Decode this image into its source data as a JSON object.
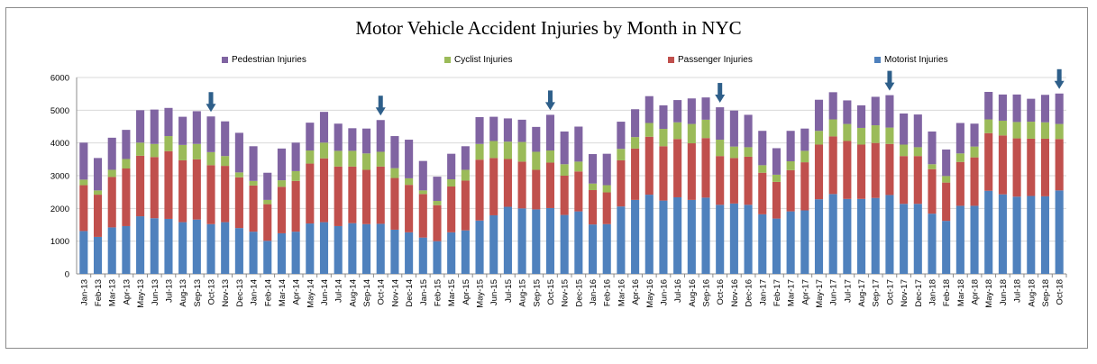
{
  "chart_data": {
    "type": "bar",
    "stacked": true,
    "title": "Motor Vehicle Accident Injuries by Month in NYC",
    "xlabel": "",
    "ylabel": "",
    "ylim": [
      0,
      6000
    ],
    "yticks": [
      "0",
      "1000",
      "2000",
      "3000",
      "4000",
      "5000",
      "6000"
    ],
    "grid": true,
    "legend_position": "top",
    "categories": [
      "Jan-13",
      "Feb-13",
      "Mar-13",
      "Apr-13",
      "May-13",
      "Jun-13",
      "Jul-13",
      "Aug-13",
      "Sep-13",
      "Oct-13",
      "Nov-13",
      "Dec-13",
      "Jan-14",
      "Feb-14",
      "Mar-14",
      "Apr-14",
      "May-14",
      "Jun-14",
      "Jul-14",
      "Aug-14",
      "Sep-14",
      "Oct-14",
      "Nov-14",
      "Dec-14",
      "Jan-15",
      "Feb-15",
      "Mar-15",
      "Apr-15",
      "May-15",
      "Jun-15",
      "Jul-15",
      "Aug-15",
      "Sep-15",
      "Oct-15",
      "Nov-15",
      "Dec-15",
      "Jan-16",
      "Feb-16",
      "Mar-16",
      "Apr-16",
      "May-16",
      "Jun-16",
      "Jul-16",
      "Aug-16",
      "Sep-16",
      "Oct-16",
      "Nov-16",
      "Dec-16",
      "Jan-17",
      "Feb-17",
      "Mar-17",
      "Apr-17",
      "May-17",
      "Jun-17",
      "Jul-17",
      "Aug-17",
      "Sep-17",
      "Oct-17",
      "Nov-17",
      "Dec-17",
      "Jan-18",
      "Feb-18",
      "Mar-18",
      "Apr-18",
      "May-18",
      "Jun-18",
      "Jul-18",
      "Aug-18",
      "Sep-18",
      "Oct-18"
    ],
    "series": [
      {
        "name": "Motorist Injuries",
        "color": "#4f81bd",
        "values": [
          1310,
          1130,
          1420,
          1460,
          1760,
          1700,
          1680,
          1580,
          1660,
          1520,
          1580,
          1400,
          1290,
          1010,
          1240,
          1290,
          1540,
          1580,
          1460,
          1550,
          1520,
          1530,
          1350,
          1270,
          1110,
          1000,
          1270,
          1330,
          1630,
          1790,
          2050,
          2000,
          1970,
          2010,
          1800,
          1910,
          1510,
          1520,
          2060,
          2260,
          2420,
          2240,
          2340,
          2260,
          2330,
          2110,
          2150,
          2110,
          1820,
          1690,
          1910,
          1940,
          2280,
          2440,
          2290,
          2290,
          2320,
          2410,
          2140,
          2140,
          1840,
          1620,
          2080,
          2080,
          2540,
          2430,
          2360,
          2380,
          2370,
          2550
        ]
      },
      {
        "name": "Passenger Injuries",
        "color": "#c0504d",
        "values": [
          1400,
          1290,
          1540,
          1760,
          1850,
          1870,
          2070,
          1890,
          1840,
          1800,
          1720,
          1550,
          1410,
          1120,
          1420,
          1550,
          1830,
          1950,
          1820,
          1730,
          1660,
          1750,
          1580,
          1450,
          1330,
          1100,
          1400,
          1520,
          1860,
          1750,
          1460,
          1430,
          1210,
          1390,
          1200,
          1220,
          1050,
          970,
          1410,
          1570,
          1770,
          1660,
          1780,
          1730,
          1820,
          1490,
          1390,
          1470,
          1270,
          1120,
          1260,
          1470,
          1670,
          1760,
          1770,
          1660,
          1680,
          1560,
          1460,
          1460,
          1360,
          1170,
          1340,
          1480,
          1760,
          1800,
          1780,
          1750,
          1760,
          1570
        ]
      },
      {
        "name": "Cyclist Injuries",
        "color": "#9bbb59",
        "values": [
          170,
          130,
          220,
          290,
          400,
          400,
          460,
          470,
          470,
          400,
          300,
          150,
          140,
          130,
          200,
          300,
          400,
          480,
          480,
          480,
          500,
          450,
          300,
          200,
          110,
          130,
          220,
          330,
          480,
          520,
          530,
          600,
          550,
          370,
          350,
          300,
          200,
          220,
          350,
          350,
          420,
          530,
          510,
          590,
          560,
          500,
          350,
          290,
          230,
          220,
          270,
          350,
          420,
          520,
          520,
          510,
          540,
          500,
          350,
          270,
          150,
          200,
          260,
          330,
          420,
          450,
          500,
          520,
          500,
          460
        ]
      },
      {
        "name": "Pedestrian Injuries",
        "color": "#8064a2",
        "values": [
          1130,
          990,
          980,
          890,
          990,
          1050,
          860,
          860,
          1000,
          1090,
          1060,
          1210,
          1060,
          830,
          970,
          870,
          850,
          940,
          830,
          690,
          760,
          970,
          980,
          1180,
          900,
          740,
          780,
          720,
          820,
          740,
          710,
          680,
          760,
          1090,
          1000,
          1070,
          900,
          960,
          830,
          850,
          820,
          720,
          680,
          780,
          680,
          990,
          1100,
          990,
          1050,
          810,
          930,
          680,
          950,
          830,
          720,
          690,
          870,
          990,
          950,
          1000,
          1000,
          810,
          930,
          700,
          840,
          800,
          840,
          700,
          840,
          930
        ]
      }
    ],
    "annotations": [
      {
        "type": "arrow",
        "category": "Oct-13"
      },
      {
        "type": "arrow",
        "category": "Oct-14"
      },
      {
        "type": "arrow",
        "category": "Oct-15"
      },
      {
        "type": "arrow",
        "category": "Oct-16"
      },
      {
        "type": "arrow",
        "category": "Oct-17"
      },
      {
        "type": "arrow",
        "category": "Oct-18"
      }
    ],
    "arrow_color": "#2e5f8a",
    "gridline_color": "#d9d9d9"
  }
}
